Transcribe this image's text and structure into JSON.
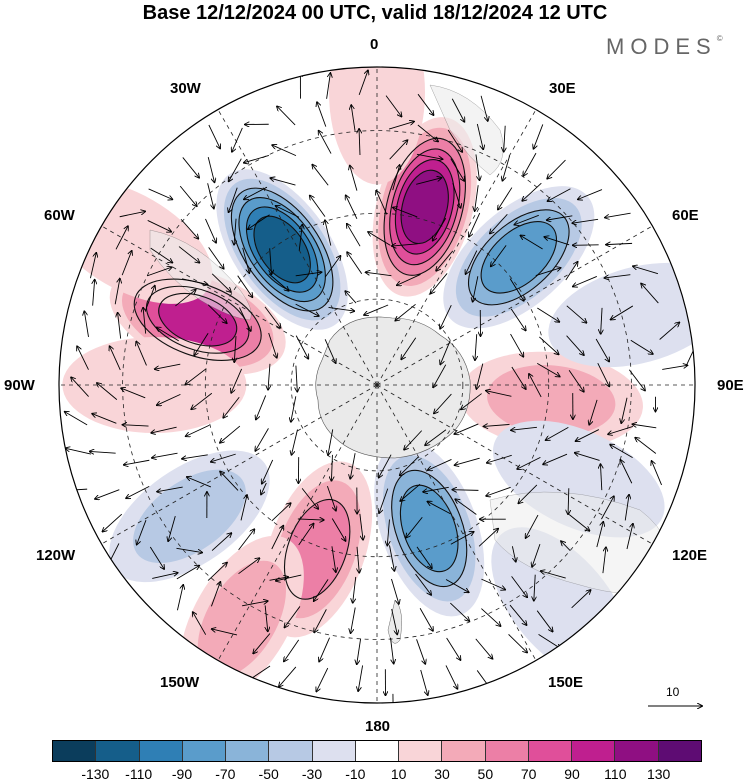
{
  "title": "Base 12/12/2024 00 UTC, valid 18/12/2024 12 UTC",
  "brand": "MODES",
  "brand_mark": "©",
  "longitude_labels": [
    "0",
    "30E",
    "60E",
    "90E",
    "120E",
    "150E",
    "180",
    "150W",
    "120W",
    "90W",
    "60W",
    "30W"
  ],
  "reference_vector": "10",
  "colorbar": {
    "ticks": [
      "-130",
      "-110",
      "-90",
      "-70",
      "-50",
      "-30",
      "-10",
      "10",
      "30",
      "50",
      "70",
      "90",
      "110",
      "130"
    ],
    "colors": [
      "#0b3d5c",
      "#155e8a",
      "#2f7fb5",
      "#5a9ccb",
      "#8ab4d9",
      "#b7c9e4",
      "#dde0ef",
      "#ffffff",
      "#f9d5d8",
      "#f3aab8",
      "#ec7fa6",
      "#e04f9a",
      "#bf1f8f",
      "#8f0f82",
      "#5e0c73"
    ]
  },
  "anomaly_centers": [
    {
      "lon": 325,
      "lat_r": 0.52,
      "value": -120
    },
    {
      "lon": 15,
      "lat_r": 0.58,
      "value": 120
    },
    {
      "lon": 290,
      "lat_r": 0.6,
      "value": 115
    },
    {
      "lon": 48,
      "lat_r": 0.6,
      "value": -80
    },
    {
      "lon": 160,
      "lat_r": 0.48,
      "value": -90
    },
    {
      "lon": 200,
      "lat_r": 0.55,
      "value": 70
    },
    {
      "lon": 235,
      "lat_r": 0.72,
      "value": -55
    },
    {
      "lon": 95,
      "lat_r": 0.55,
      "value": 40
    },
    {
      "lon": 270,
      "lat_r": 0.7,
      "value": 30
    },
    {
      "lon": 75,
      "lat_r": 0.85,
      "value": -30
    },
    {
      "lon": 115,
      "lat_r": 0.7,
      "value": -35
    },
    {
      "lon": 210,
      "lat_r": 0.85,
      "value": 45
    },
    {
      "lon": 300,
      "lat_r": 0.9,
      "value": 25
    },
    {
      "lon": 0,
      "lat_r": 0.92,
      "value": 20
    },
    {
      "lon": 140,
      "lat_r": 0.9,
      "value": -25
    }
  ]
}
